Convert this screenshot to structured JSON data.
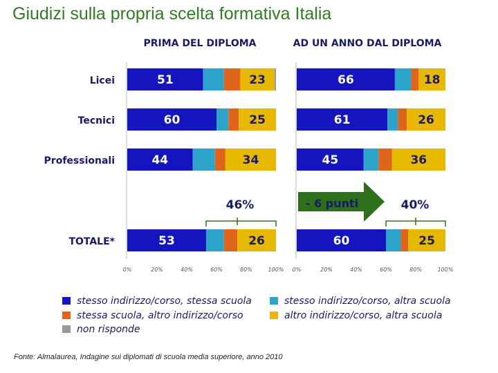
{
  "title": "Giudizi sulla propria scelta formativa Italia",
  "source": "Fonte: Almalaurea, Indagine sui diplomati di scuola media superiore, anno 2010",
  "colors": {
    "stessa_scuola_stesso_indirizzo": "#1515c0",
    "altra_scuola_stesso_indirizzo": "#2ea3cc",
    "stessa_scuola_altro_indirizzo": "#e0651c",
    "altra_scuola_altro_indirizzo": "#e6b800",
    "non_risponde": "#999999",
    "arrow": "#2e6f1c",
    "bracket": "#2e6f1c"
  },
  "chart_data": {
    "type": "bar",
    "stacked": true,
    "orientation": "horizontal",
    "panels": [
      "PRIMA DEL DIPLOMA",
      "AD UN ANNO DAL DIPLOMA"
    ],
    "categories": [
      "Licei",
      "Tecnici",
      "Professionali",
      "TOTALE*"
    ],
    "series": [
      {
        "name": "stesso indirizzo/corso, stessa scuola",
        "key": "stessa_scuola_stesso_indirizzo",
        "panel_values": [
          [
            51,
            60,
            44,
            53
          ],
          [
            66,
            61,
            45,
            60
          ]
        ]
      },
      {
        "name": "stesso indirizzo/corso, altra scuola",
        "key": "altra_scuola_stesso_indirizzo",
        "panel_values": [
          [
            14,
            8,
            15,
            12
          ],
          [
            11,
            7,
            10,
            10
          ]
        ]
      },
      {
        "name": "stessa scuola, altro indirizzo/corso",
        "key": "stessa_scuola_altro_indirizzo",
        "panel_values": [
          [
            11,
            7,
            7,
            9
          ],
          [
            5,
            6,
            9,
            5
          ]
        ]
      },
      {
        "name": "altro indirizzo/corso, altra scuola",
        "key": "altra_scuola_altro_indirizzo",
        "panel_values": [
          [
            23,
            25,
            34,
            26
          ],
          [
            18,
            26,
            36,
            25
          ]
        ]
      },
      {
        "name": "non risponde",
        "key": "non_risponde",
        "panel_values": [
          [
            1,
            0,
            0,
            0
          ],
          [
            0,
            0,
            0,
            0
          ]
        ]
      }
    ],
    "labeled_series": [
      "stessa_scuola_stesso_indirizzo",
      "altra_scuola_altro_indirizzo"
    ],
    "xlim": [
      0,
      100
    ],
    "xticks": [
      "0%",
      "20%",
      "40%",
      "60%",
      "80%",
      "100%"
    ],
    "annotations": {
      "bracket_left": "46%",
      "bracket_right": "40%",
      "arrow": "- 6 punti"
    },
    "legend_position": "bottom"
  }
}
